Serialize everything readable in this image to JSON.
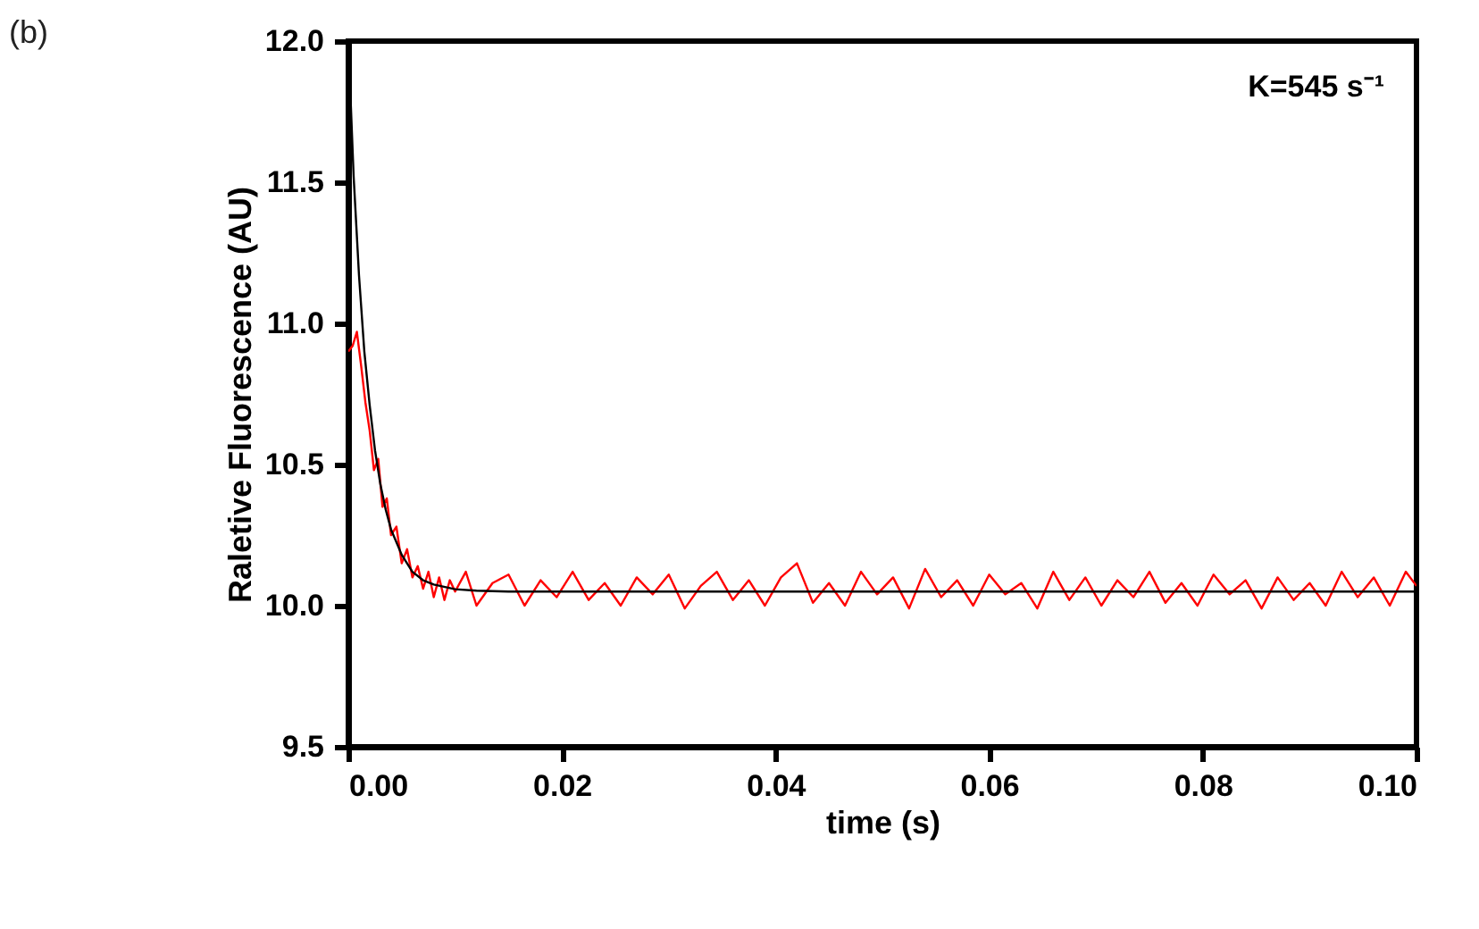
{
  "chart_data": {
    "type": "line",
    "xlabel": "time (s)",
    "ylabel": "Raletive Fluorescence (AU)",
    "annotations": [
      "(b)",
      "K=545 s⁻¹"
    ],
    "xlim": [
      0,
      0.1
    ],
    "ylim": [
      9.5,
      12.0
    ],
    "xticks": [
      {
        "value": 0,
        "label": "0.00"
      },
      {
        "value": 0.02,
        "label": "0.02"
      },
      {
        "value": 0.04,
        "label": "0.04"
      },
      {
        "value": 0.06,
        "label": "0.06"
      },
      {
        "value": 0.08,
        "label": "0.08"
      },
      {
        "value": 0.1,
        "label": "0.10"
      }
    ],
    "yticks": [
      {
        "value": 9.5,
        "label": "9.5"
      },
      {
        "value": 10,
        "label": "10.0"
      },
      {
        "value": 10.5,
        "label": "10.5"
      },
      {
        "value": 11,
        "label": "11.0"
      },
      {
        "value": 11.5,
        "label": "11.5"
      },
      {
        "value": 12,
        "label": "12.0"
      }
    ],
    "grid": false,
    "marker": "none",
    "line_style": "solid",
    "series": [
      {
        "color": "#ff0000",
        "x": [
          0,
          0.0004,
          0.0008,
          0.0012,
          0.0016,
          0.002,
          0.0024,
          0.0028,
          0.0032,
          0.0036,
          0.004,
          0.0045,
          0.005,
          0.0055,
          0.006,
          0.0065,
          0.007,
          0.0075,
          0.008,
          0.0085,
          0.009,
          0.0095,
          0.01,
          0.011,
          0.012,
          0.0135,
          0.015,
          0.0165,
          0.018,
          0.0195,
          0.021,
          0.0225,
          0.024,
          0.0255,
          0.027,
          0.0285,
          0.03,
          0.0315,
          0.033,
          0.0345,
          0.036,
          0.0375,
          0.039,
          0.0405,
          0.042,
          0.0435,
          0.045,
          0.0465,
          0.048,
          0.0495,
          0.051,
          0.0525,
          0.054,
          0.0555,
          0.057,
          0.0585,
          0.06,
          0.0615,
          0.063,
          0.0645,
          0.066,
          0.0675,
          0.069,
          0.0705,
          0.072,
          0.0735,
          0.075,
          0.0765,
          0.078,
          0.0795,
          0.081,
          0.0825,
          0.084,
          0.0855,
          0.087,
          0.0885,
          0.09,
          0.0915,
          0.093,
          0.0945,
          0.096,
          0.0975,
          0.099,
          0.1
        ],
        "values": [
          10.9,
          10.92,
          10.97,
          10.85,
          10.72,
          10.62,
          10.48,
          10.52,
          10.35,
          10.38,
          10.25,
          10.28,
          10.15,
          10.2,
          10.1,
          10.14,
          10.06,
          10.12,
          10.03,
          10.1,
          10.02,
          10.09,
          10.05,
          10.12,
          10.0,
          10.08,
          10.11,
          10.0,
          10.09,
          10.03,
          10.12,
          10.02,
          10.08,
          10.0,
          10.1,
          10.04,
          10.11,
          9.99,
          10.07,
          10.12,
          10.02,
          10.09,
          10.0,
          10.1,
          10.15,
          10.01,
          10.08,
          10.0,
          10.12,
          10.04,
          10.1,
          9.99,
          10.13,
          10.03,
          10.09,
          10.0,
          10.11,
          10.04,
          10.08,
          9.99,
          10.12,
          10.02,
          10.1,
          10.0,
          10.09,
          10.03,
          10.12,
          10.01,
          10.08,
          10.0,
          10.11,
          10.04,
          10.09,
          9.99,
          10.1,
          10.02,
          10.08,
          10.0,
          10.12,
          10.03,
          10.1,
          10.0,
          10.12,
          10.07
        ]
      },
      {
        "color": "#000000",
        "x": [
          0,
          0.0005,
          0.001,
          0.0015,
          0.002,
          0.0025,
          0.003,
          0.0035,
          0.004,
          0.005,
          0.006,
          0.007,
          0.008,
          0.01,
          0.012,
          0.015,
          0.02,
          0.1
        ],
        "values": [
          12.0,
          11.52,
          11.17,
          10.9,
          10.71,
          10.55,
          10.43,
          10.34,
          10.27,
          10.18,
          10.12,
          10.09,
          10.075,
          10.058,
          10.053,
          10.05,
          10.05,
          10.05
        ]
      }
    ]
  }
}
